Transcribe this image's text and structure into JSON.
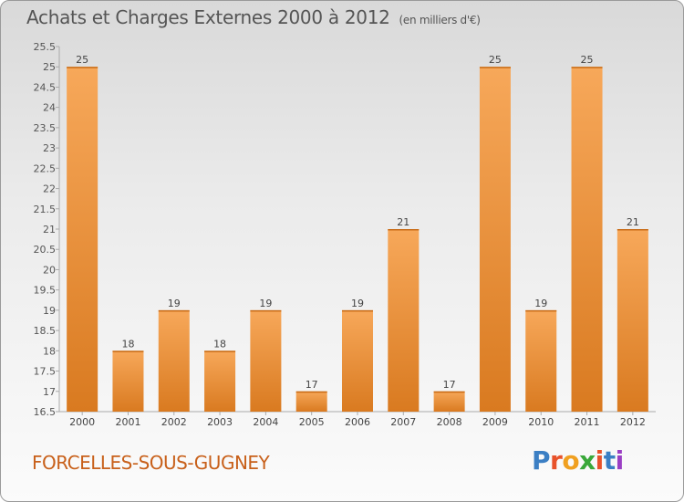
{
  "header": {
    "title": "Achats et Charges Externes 2000 à 2012",
    "unit": "(en milliers d'€)"
  },
  "footer": {
    "commune": "FORCELLES-SOUS-GUGNEY",
    "logo": "Proxiti"
  },
  "colors": {
    "bar_top": "#f7a85a",
    "bar_bottom": "#d97a20",
    "commune_text": "#c8601a",
    "logo_letters": [
      "#3b7fc4",
      "#e8522a",
      "#f0a020",
      "#3aa83a",
      "#e8522a",
      "#3b7fc4",
      "#9a3fc4"
    ]
  },
  "chart_data": {
    "type": "bar",
    "title": "Achats et Charges Externes 2000 à 2012",
    "categories": [
      "2000",
      "2001",
      "2002",
      "2003",
      "2004",
      "2005",
      "2006",
      "2007",
      "2008",
      "2009",
      "2010",
      "2011",
      "2012"
    ],
    "values": [
      25,
      18,
      19,
      18,
      19,
      17,
      19,
      21,
      17,
      25,
      19,
      25,
      21
    ],
    "ylim": [
      16.5,
      25.5
    ],
    "yticks": [
      "16.5",
      "17",
      "17.5",
      "18",
      "18.5",
      "19",
      "19.5",
      "20",
      "20.5",
      "21",
      "21.5",
      "22",
      "22.5",
      "23",
      "23.5",
      "24",
      "24.5",
      "25",
      "25.5"
    ],
    "grid": false,
    "legend": "none"
  }
}
